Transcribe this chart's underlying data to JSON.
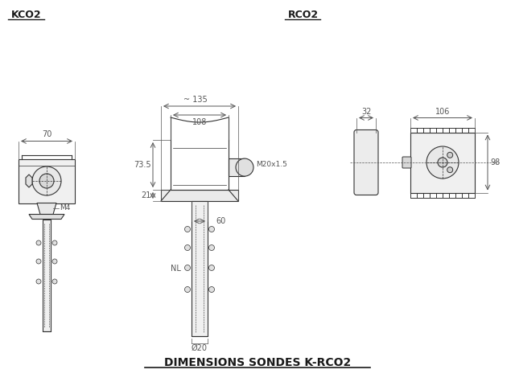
{
  "title_kco2": "KCO2",
  "title_rco2": "RCO2",
  "bottom_title": "DIMENSIONS SONDES K-RCO2",
  "bg_color": "#ffffff",
  "line_color": "#333333",
  "dim_color": "#555555",
  "annotations": {
    "kco2_width": "70",
    "rco2_top_width": "~ 135",
    "rco2_inner_width": "108",
    "rco2_height": "73.5",
    "rco2_base_height": "21",
    "rco2_probe_width": "60",
    "rco2_probe_label": "NL",
    "rco2_probe_dia": "Ø20",
    "rco2_thread": "M20x1.5",
    "kco2_screw": "M4",
    "rco2_side_depth": "32",
    "rco2_side_width": "106",
    "rco2_side_height": "98"
  }
}
